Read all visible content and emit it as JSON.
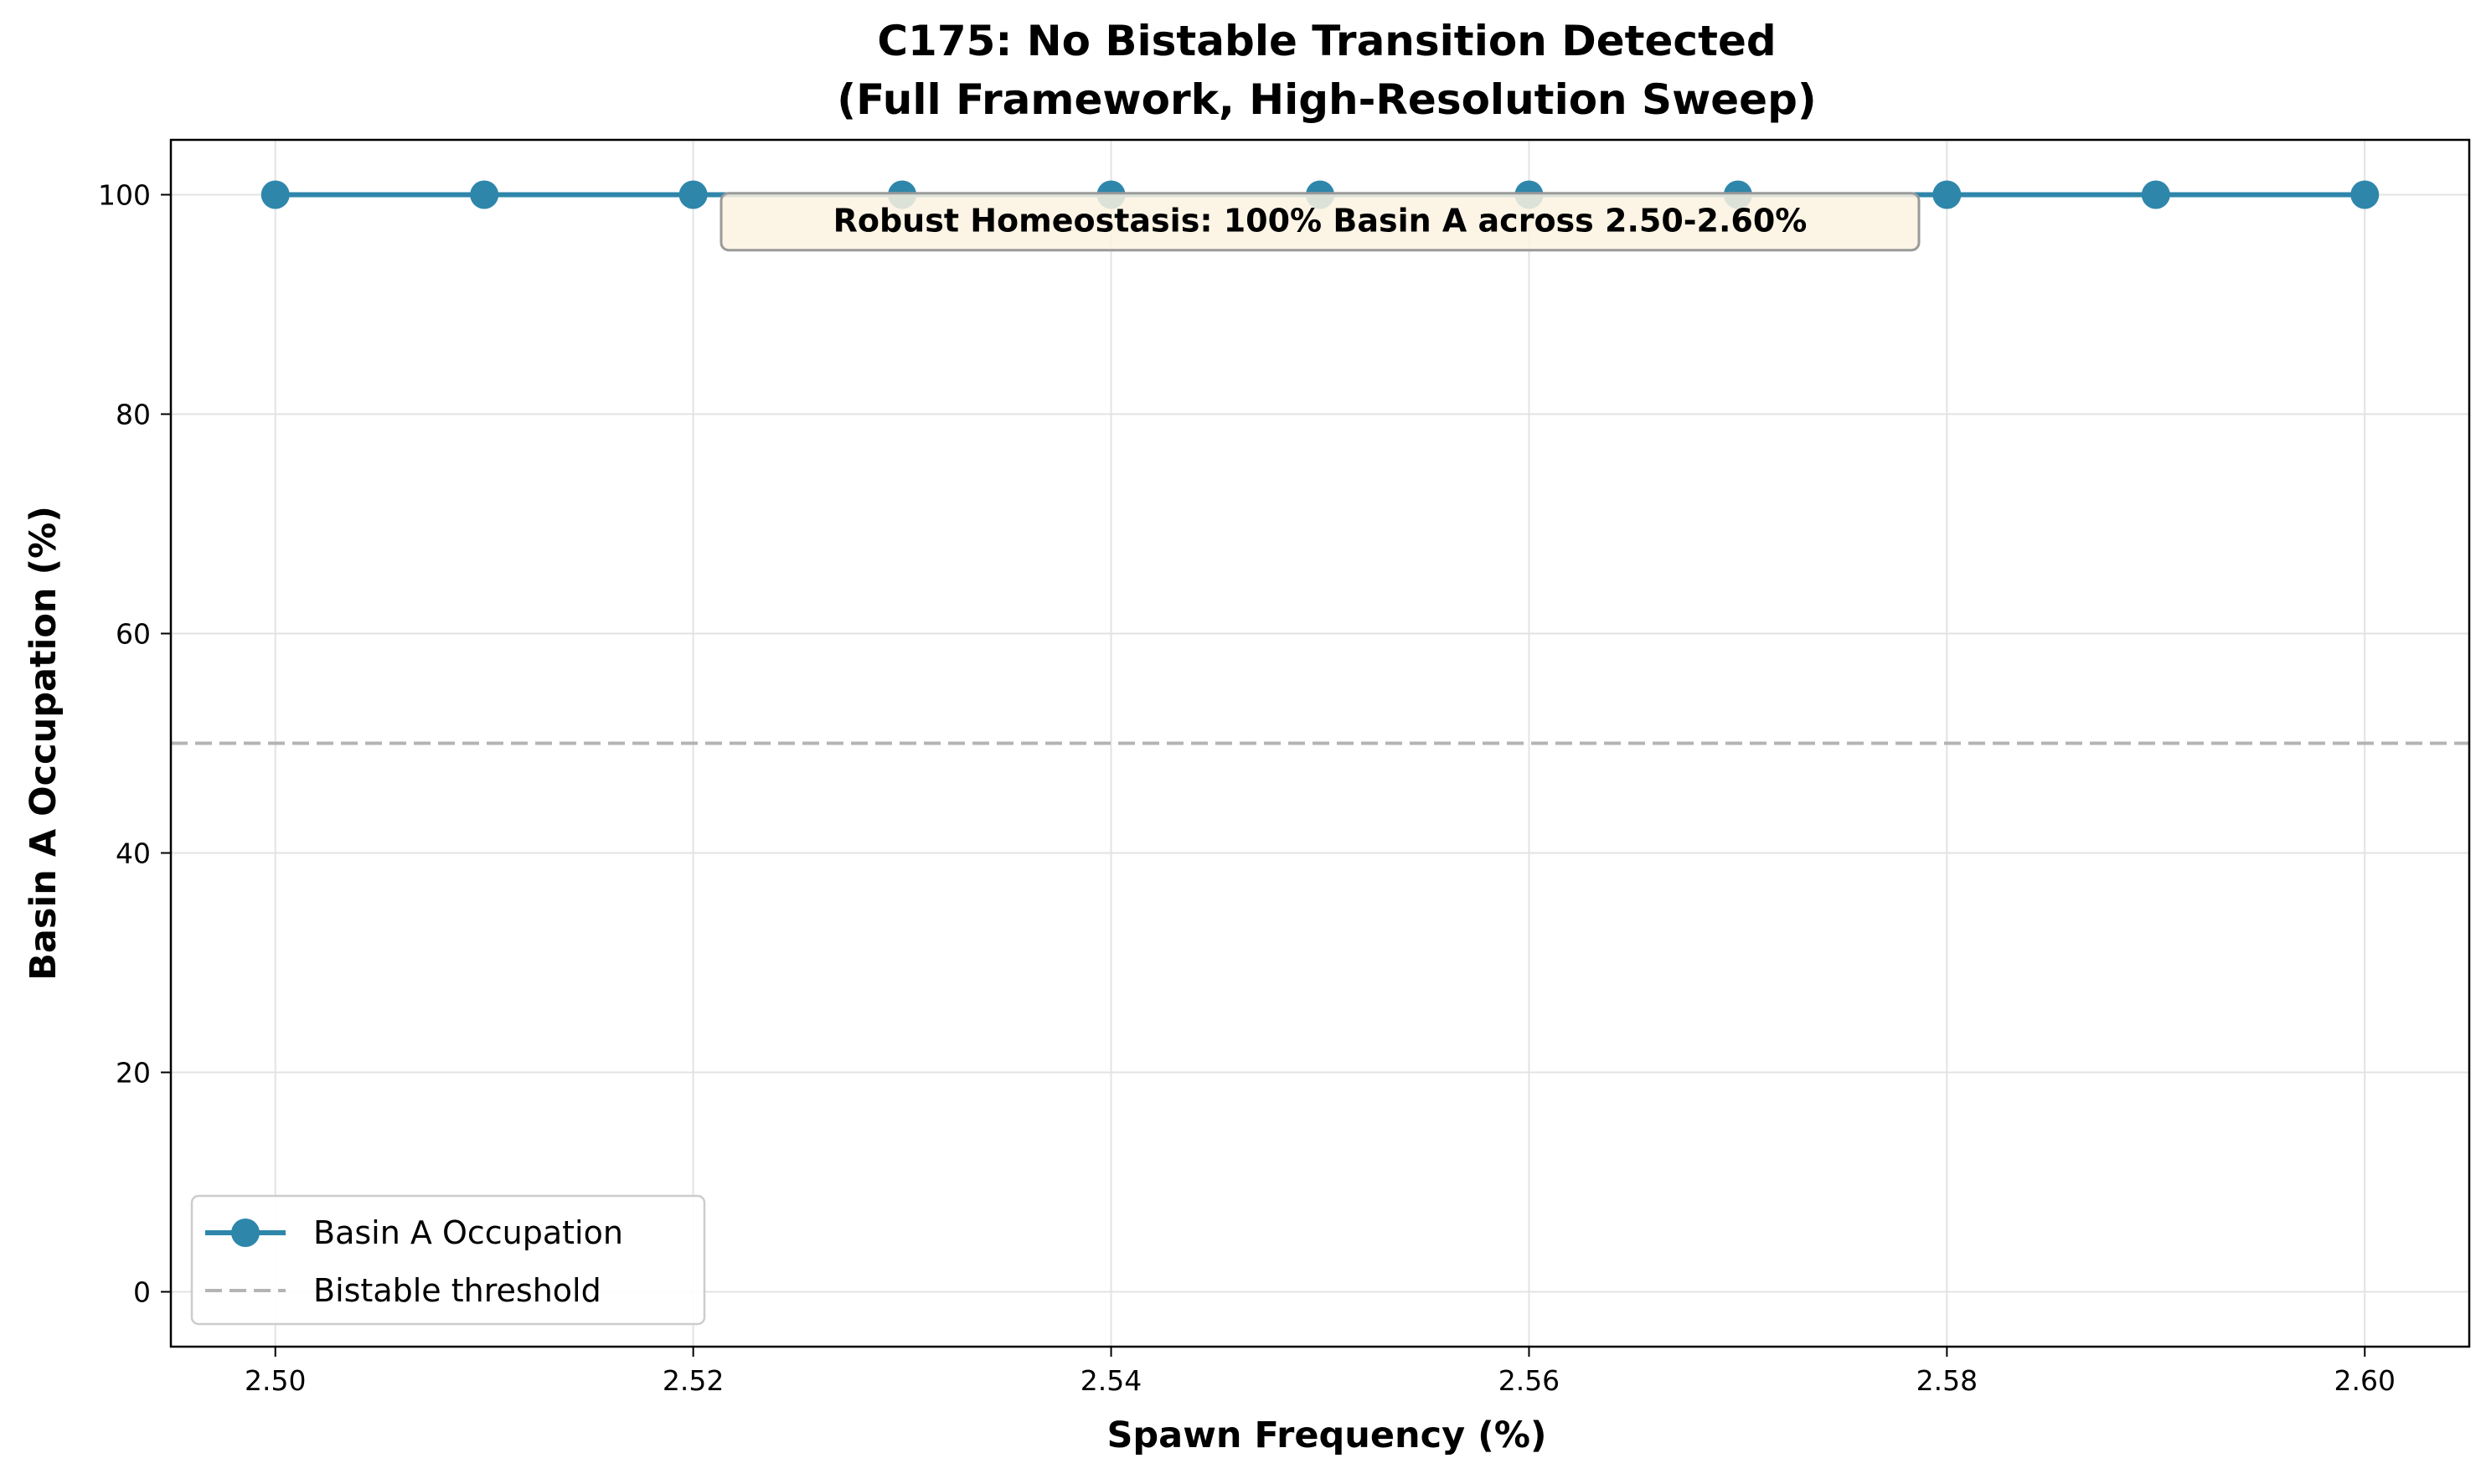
{
  "chart_data": {
    "type": "line",
    "title_line1": "C175: No Bistable Transition Detected",
    "title_line2": "(Full Framework, High-Resolution Sweep)",
    "xlabel": "Spawn Frequency (%)",
    "ylabel": "Basin A Occupation (%)",
    "xlim": [
      2.495,
      2.605
    ],
    "ylim": [
      -5,
      105
    ],
    "xticks": [
      2.5,
      2.52,
      2.54,
      2.56,
      2.58,
      2.6
    ],
    "xtick_labels": [
      "2.50",
      "2.52",
      "2.54",
      "2.56",
      "2.58",
      "2.60"
    ],
    "yticks": [
      0,
      20,
      40,
      60,
      80,
      100
    ],
    "ytick_labels": [
      "0",
      "20",
      "40",
      "60",
      "80",
      "100"
    ],
    "grid": true,
    "legend_position": "lower-left",
    "series": [
      {
        "name": "Basin A Occupation",
        "color": "#2e86ab",
        "marker": "circle",
        "x": [
          2.5,
          2.51,
          2.52,
          2.53,
          2.54,
          2.55,
          2.56,
          2.57,
          2.58,
          2.59,
          2.6
        ],
        "y": [
          100,
          100,
          100,
          100,
          100,
          100,
          100,
          100,
          100,
          100,
          100
        ]
      }
    ],
    "reference_lines": [
      {
        "name": "Bistable threshold",
        "orientation": "horizontal",
        "y": 50,
        "color": "#b4b4b4",
        "style": "dashed"
      }
    ],
    "annotation": {
      "text": "Robust Homeostasis: 100% Basin A across 2.50-2.60%",
      "x": 2.55,
      "y": 98,
      "box_color": "#fbf2e0"
    }
  }
}
